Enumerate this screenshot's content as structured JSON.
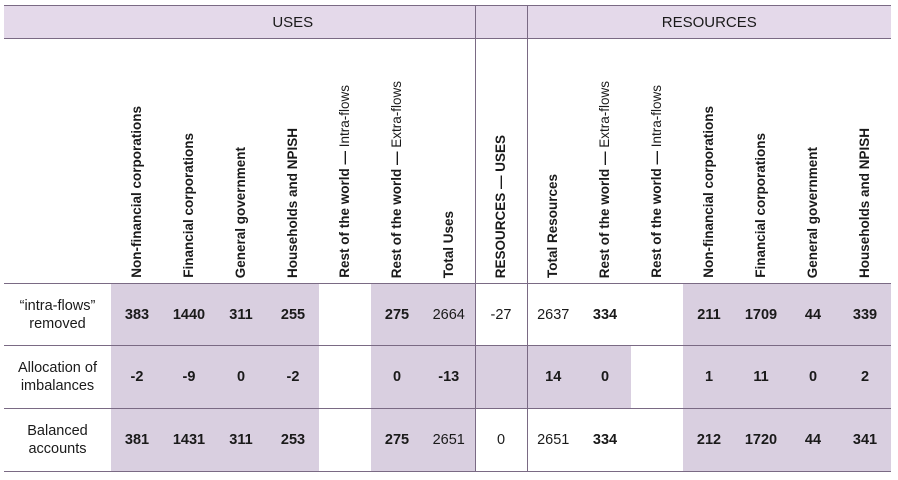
{
  "group_headers": {
    "uses": "USES",
    "resources": "RESOURCES"
  },
  "columns": [
    {
      "label": "Non-financial corporations"
    },
    {
      "label": "Financial corporations"
    },
    {
      "label": "General government"
    },
    {
      "label": "Households and NPISH"
    },
    {
      "label_main": "Rest of the world — ",
      "label_sub": "Intra-flows"
    },
    {
      "label_main": "Rest of the world — ",
      "label_sub": "Extra-flows"
    },
    {
      "label": "Total Uses"
    },
    {
      "label": "RESOURCES — USES"
    },
    {
      "label": "Total Resources"
    },
    {
      "label_main": "Rest of the world — ",
      "label_sub": "Extra-flows"
    },
    {
      "label_main": "Rest of the world — ",
      "label_sub": "Intra-flows"
    },
    {
      "label": "Non-financial corporations"
    },
    {
      "label": "Financial corporations"
    },
    {
      "label": "General government"
    },
    {
      "label": "Households and NPISH"
    }
  ],
  "rows": [
    {
      "label_line1": "“intra-flows”",
      "label_line2": "removed",
      "values": [
        "383",
        "1440",
        "311",
        "255",
        "",
        "275",
        "2664",
        "-27",
        "2637",
        "334",
        "",
        "211",
        "1709",
        "44",
        "339"
      ]
    },
    {
      "label_line1": "Allocation of",
      "label_line2": "imbalances",
      "values": [
        "-2",
        "-9",
        "0",
        "-2",
        "",
        "0",
        "-13",
        "",
        "14",
        "0",
        "",
        "1",
        "11",
        "0",
        "2"
      ]
    },
    {
      "label_line1": "Balanced",
      "label_line2": "accounts",
      "values": [
        "381",
        "1431",
        "311",
        "253",
        "",
        "275",
        "2651",
        "0",
        "2651",
        "334",
        "",
        "212",
        "1720",
        "44",
        "341"
      ]
    }
  ]
}
